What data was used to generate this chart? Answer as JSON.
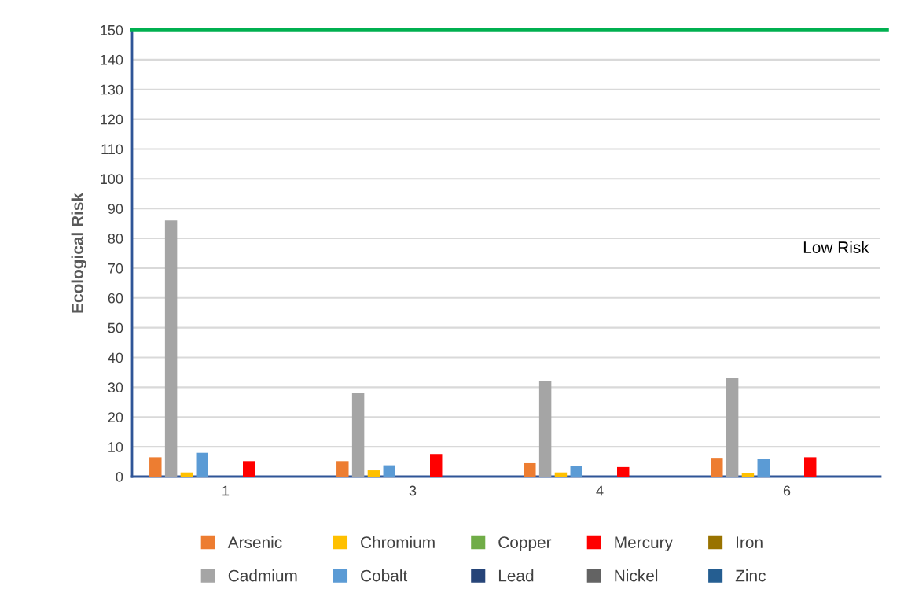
{
  "chart_data": {
    "type": "bar",
    "ylabel": "Ecological Risk",
    "categories": [
      "1",
      "3",
      "4",
      "6"
    ],
    "series": [
      {
        "name": "Arsenic",
        "color": "#ed7d31",
        "values": [
          6.5,
          5.2,
          4.5,
          6.3
        ]
      },
      {
        "name": "Cadmium",
        "color": "#a5a5a5",
        "values": [
          86,
          28,
          32,
          33
        ]
      },
      {
        "name": "Chromium",
        "color": "#ffc000",
        "values": [
          1.4,
          2.1,
          1.4,
          1.1
        ]
      },
      {
        "name": "Cobalt",
        "color": "#5b9bd5",
        "values": [
          8.0,
          3.8,
          3.5,
          5.9
        ]
      },
      {
        "name": "Copper",
        "color": "#70ad47",
        "values": [
          0,
          0,
          0,
          0
        ]
      },
      {
        "name": "Lead",
        "color": "#264478",
        "values": [
          0,
          0,
          0,
          0
        ]
      },
      {
        "name": "Mercury",
        "color": "#ff0000",
        "values": [
          5.2,
          7.6,
          3.2,
          6.5
        ]
      },
      {
        "name": "Nickel",
        "color": "#636363",
        "values": [
          0,
          0,
          0,
          0
        ]
      },
      {
        "name": "Iron",
        "color": "#997300",
        "values": [
          0,
          0,
          0,
          0
        ]
      },
      {
        "name": "Zinc",
        "color": "#255e91",
        "values": [
          0,
          0,
          0,
          0
        ]
      }
    ],
    "ylim": [
      0,
      150
    ],
    "yticks": [
      0,
      10,
      20,
      30,
      40,
      50,
      60,
      70,
      80,
      90,
      100,
      110,
      120,
      130,
      140,
      150
    ],
    "grid": "y",
    "legend": "bottom",
    "ref_lines": [
      {
        "axis": "y",
        "value": 150,
        "color": "#00b050",
        "line_style": "solid"
      }
    ],
    "annotations": [
      "Low Risk"
    ]
  }
}
